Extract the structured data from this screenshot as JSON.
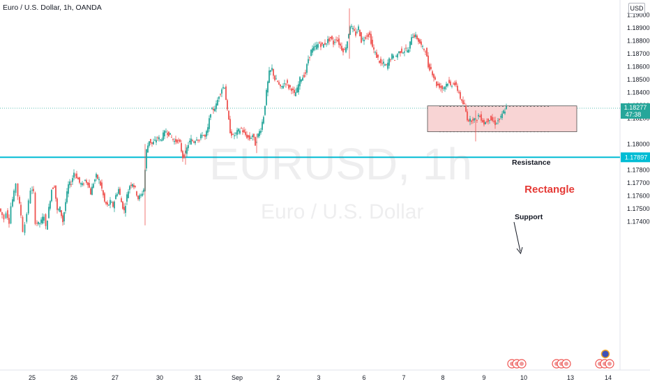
{
  "header": {
    "title": "Euro / U.S. Dollar, 1h, OANDA",
    "currency": "USD"
  },
  "watermark": {
    "symbol": "EURUSD, 1h",
    "name": "Euro / U.S. Dollar"
  },
  "colors": {
    "up": "#26a69a",
    "down": "#ef5350",
    "support_line": "#00bcd4",
    "rectangle_fill": "#f8d2d2",
    "rectangle_text": "#e53935",
    "last_price_bg": "#26a69a"
  },
  "chart_data": {
    "type": "candlestick",
    "symbol": "EURUSD",
    "timeframe": "1h",
    "y_axis": {
      "ticks": [
        "1.19000",
        "1.18900",
        "1.18800",
        "1.18700",
        "1.18600",
        "1.18500",
        "1.18400",
        "1.18300",
        "1.18200",
        "1.18000",
        "1.17800",
        "1.17700",
        "1.17600",
        "1.17500",
        "1.17400"
      ],
      "range": [
        1.1737,
        1.192
      ]
    },
    "x_axis": {
      "labels": [
        "25",
        "26",
        "27",
        "30",
        "31",
        "Sep",
        "2",
        "3",
        "6",
        "7",
        "8",
        "9",
        "10",
        "13",
        "14"
      ]
    },
    "price_path": [
      [
        0,
        1.175
      ],
      [
        4,
        1.1745
      ],
      [
        7,
        1.1742
      ],
      [
        10,
        1.1748
      ],
      [
        14,
        1.174
      ],
      [
        17,
        1.1752
      ],
      [
        21,
        1.1762
      ],
      [
        24,
        1.177
      ],
      [
        27,
        1.176
      ],
      [
        31,
        1.1745
      ],
      [
        34,
        1.1733
      ],
      [
        37,
        1.1738
      ],
      [
        42,
        1.1755
      ],
      [
        45,
        1.1765
      ],
      [
        49,
        1.1762
      ],
      [
        52,
        1.174
      ],
      [
        56,
        1.1738
      ],
      [
        60,
        1.174
      ],
      [
        64,
        1.1745
      ],
      [
        67,
        1.1735
      ],
      [
        71,
        1.175
      ],
      [
        75,
        1.1765
      ],
      [
        79,
        1.1768
      ],
      [
        83,
        1.1748
      ],
      [
        87,
        1.175
      ],
      [
        91,
        1.174
      ],
      [
        95,
        1.1755
      ],
      [
        99,
        1.1768
      ],
      [
        103,
        1.177
      ],
      [
        107,
        1.1778
      ],
      [
        111,
        1.1775
      ],
      [
        115,
        1.177
      ],
      [
        119,
        1.1768
      ],
      [
        123,
        1.1772
      ],
      [
        127,
        1.177
      ],
      [
        131,
        1.1762
      ],
      [
        135,
        1.177
      ],
      [
        139,
        1.1775
      ],
      [
        143,
        1.1772
      ],
      [
        147,
        1.1765
      ],
      [
        151,
        1.1755
      ],
      [
        155,
        1.1752
      ],
      [
        159,
        1.1755
      ],
      [
        163,
        1.1752
      ],
      [
        167,
        1.176
      ],
      [
        171,
        1.1765
      ],
      [
        175,
        1.1755
      ],
      [
        179,
        1.1748
      ],
      [
        183,
        1.176
      ],
      [
        187,
        1.1768
      ],
      [
        191,
        1.177
      ],
      [
        195,
        1.1765
      ],
      [
        199,
        1.1758
      ],
      [
        203,
        1.176
      ],
      [
        207,
        1.1765
      ],
      [
        211,
        1.1795
      ],
      [
        215,
        1.1803
      ],
      [
        219,
        1.18
      ],
      [
        223,
        1.1802
      ],
      [
        227,
        1.1805
      ],
      [
        231,
        1.1803
      ],
      [
        235,
        1.1807
      ],
      [
        239,
        1.181
      ],
      [
        243,
        1.1808
      ],
      [
        247,
        1.1805
      ],
      [
        251,
        1.1802
      ],
      [
        255,
        1.1803
      ],
      [
        259,
        1.18
      ],
      [
        263,
        1.179
      ],
      [
        267,
        1.1793
      ],
      [
        271,
        1.18
      ],
      [
        275,
        1.1803
      ],
      [
        279,
        1.1802
      ],
      [
        283,
        1.1805
      ],
      [
        287,
        1.1803
      ],
      [
        291,
        1.1808
      ],
      [
        295,
        1.1805
      ],
      [
        299,
        1.1812
      ],
      [
        303,
        1.1825
      ],
      [
        307,
        1.1827
      ],
      [
        311,
        1.183
      ],
      [
        315,
        1.1838
      ],
      [
        319,
        1.1843
      ],
      [
        323,
        1.1845
      ],
      [
        327,
        1.1825
      ],
      [
        331,
        1.181
      ],
      [
        335,
        1.1806
      ],
      [
        339,
        1.1808
      ],
      [
        343,
        1.181
      ],
      [
        347,
        1.1812
      ],
      [
        351,
        1.1808
      ],
      [
        355,
        1.1806
      ],
      [
        359,
        1.1804
      ],
      [
        363,
        1.1807
      ],
      [
        367,
        1.18
      ],
      [
        371,
        1.1807
      ],
      [
        375,
        1.1812
      ],
      [
        379,
        1.1822
      ],
      [
        383,
        1.184
      ],
      [
        387,
        1.1855
      ],
      [
        391,
        1.1858
      ],
      [
        395,
        1.185
      ],
      [
        399,
        1.1848
      ],
      [
        403,
        1.1843
      ],
      [
        407,
        1.1846
      ],
      [
        411,
        1.1848
      ],
      [
        415,
        1.1844
      ],
      [
        419,
        1.1843
      ],
      [
        423,
        1.1838
      ],
      [
        427,
        1.1842
      ],
      [
        431,
        1.185
      ],
      [
        435,
        1.1852
      ],
      [
        439,
        1.1855
      ],
      [
        443,
        1.1866
      ],
      [
        447,
        1.1872
      ],
      [
        451,
        1.1874
      ],
      [
        455,
        1.1876
      ],
      [
        459,
        1.1878
      ],
      [
        463,
        1.1876
      ],
      [
        467,
        1.1878
      ],
      [
        471,
        1.188
      ],
      [
        475,
        1.1882
      ],
      [
        479,
        1.1878
      ],
      [
        483,
        1.1882
      ],
      [
        487,
        1.1878
      ],
      [
        491,
        1.1874
      ],
      [
        495,
        1.1872
      ],
      [
        499,
        1.188
      ],
      [
        503,
        1.1892
      ],
      [
        507,
        1.1888
      ],
      [
        511,
        1.1885
      ],
      [
        515,
        1.189
      ],
      [
        519,
        1.188
      ],
      [
        523,
        1.1882
      ],
      [
        527,
        1.1885
      ],
      [
        531,
        1.1884
      ],
      [
        535,
        1.1875
      ],
      [
        539,
        1.187
      ],
      [
        543,
        1.1866
      ],
      [
        547,
        1.1862
      ],
      [
        551,
        1.1862
      ],
      [
        555,
        1.186
      ],
      [
        559,
        1.1865
      ],
      [
        563,
        1.1868
      ],
      [
        567,
        1.1866
      ],
      [
        571,
        1.187
      ],
      [
        575,
        1.1872
      ],
      [
        579,
        1.1872
      ],
      [
        583,
        1.1873
      ],
      [
        587,
        1.1872
      ],
      [
        591,
        1.1884
      ],
      [
        595,
        1.1884
      ],
      [
        599,
        1.1882
      ],
      [
        603,
        1.1878
      ],
      [
        607,
        1.1874
      ],
      [
        611,
        1.1873
      ],
      [
        615,
        1.186
      ],
      [
        619,
        1.1858
      ],
      [
        623,
        1.1852
      ],
      [
        627,
        1.1846
      ],
      [
        631,
        1.1845
      ],
      [
        635,
        1.1843
      ],
      [
        639,
        1.1845
      ],
      [
        643,
        1.1848
      ],
      [
        647,
        1.1845
      ],
      [
        651,
        1.1848
      ],
      [
        655,
        1.1844
      ],
      [
        659,
        1.184
      ],
      [
        663,
        1.1832
      ],
      [
        667,
        1.183
      ],
      [
        671,
        1.182
      ],
      [
        675,
        1.1818
      ],
      [
        679,
        1.182
      ],
      [
        683,
        1.1818
      ],
      [
        687,
        1.1822
      ],
      [
        691,
        1.182
      ],
      [
        695,
        1.1816
      ],
      [
        699,
        1.1818
      ],
      [
        703,
        1.182
      ],
      [
        707,
        1.1818
      ],
      [
        711,
        1.1816
      ],
      [
        715,
        1.1818
      ],
      [
        719,
        1.182
      ],
      [
        723,
        1.1825
      ],
      [
        727,
        1.18277
      ]
    ],
    "resistance": 1.1829,
    "support": 1.18095,
    "horizontal_line": 1.17897,
    "rectangle": {
      "from_x": 613,
      "to_x": 827,
      "top": 1.18295,
      "bottom": 1.18095,
      "label": "Rectangle"
    },
    "annotations": [
      {
        "text": "Resistance"
      },
      {
        "text": "Support"
      }
    ],
    "last_price": {
      "value": "1.18277",
      "countdown": "47:38",
      "dotted_level": 1.18277
    },
    "line_label": "1.17897",
    "events": [
      {
        "x": 742
      },
      {
        "x": 806
      },
      {
        "x": 868,
        "high_impact": true
      }
    ]
  }
}
